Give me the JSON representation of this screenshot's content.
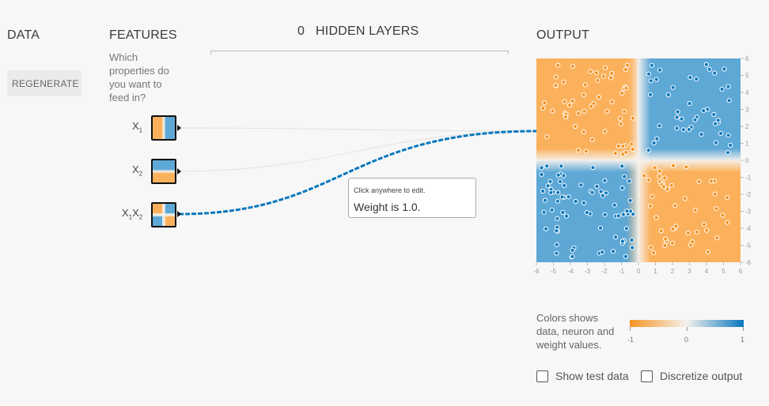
{
  "columns": {
    "data": "DATA",
    "features": "FEATURES",
    "hidden_count": "0",
    "hidden_layers": "HIDDEN LAYERS",
    "output": "OUTPUT"
  },
  "regenerate_label": "REGENERATE",
  "features_question": [
    "Which",
    "properties do",
    "you want to",
    "feed in?"
  ],
  "features": [
    {
      "name": "X",
      "sub": "1"
    },
    {
      "name": "X",
      "sub": "2"
    },
    {
      "name": "X",
      "sub": "1",
      "name2": "X",
      "sub2": "2"
    }
  ],
  "tooltip": {
    "hint": "Click anywhere to edit.",
    "weight": "Weight is 1.0."
  },
  "legend": {
    "text": [
      "Colors shows",
      "data, neuron and",
      "weight values."
    ],
    "ticks": [
      "-1",
      "0",
      "1"
    ]
  },
  "axis": {
    "x_ticks": [
      "-6",
      "-5",
      "-4",
      "-3",
      "-2",
      "-1",
      "0",
      "1",
      "2",
      "3",
      "4",
      "5",
      "6"
    ],
    "y_ticks": [
      "6",
      "5",
      "4",
      "3",
      "2",
      "1",
      "0",
      "-1",
      "-2",
      "-3",
      "-4",
      "-5",
      "-6"
    ]
  },
  "checkboxes": {
    "show_test_data": "Show test data",
    "discretize_output": "Discretize output"
  },
  "colors": {
    "orange": "#f59322",
    "blue": "#0877bd",
    "orange_fill": "#fbb15c",
    "blue_fill": "#5ea8d6"
  }
}
